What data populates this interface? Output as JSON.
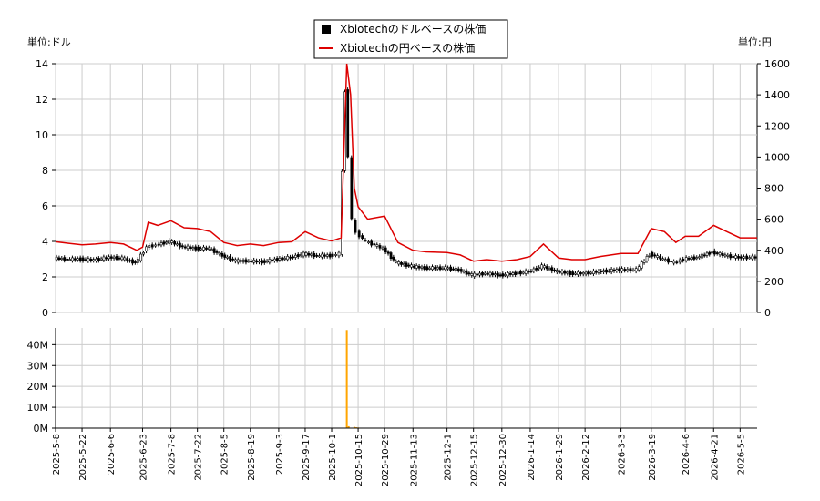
{
  "chart_data": [
    {
      "type": "line",
      "title": "",
      "unit_left": "単位:ドル",
      "unit_right": "単位:円",
      "legend": {
        "placement": "top-center",
        "entries": [
          {
            "label": "Xbiotechのドルベースの株価",
            "color": "#000000",
            "marker": "box"
          },
          {
            "label": "Xbiotechの円ベースの株価",
            "color": "#dd0000",
            "marker": "line"
          }
        ]
      },
      "x_range": [
        "2025-05-08",
        "2026-05-14"
      ],
      "xticks": [
        "2025-5-8",
        "2025-5-22",
        "2025-6-6",
        "2025-6-23",
        "2025-7-8",
        "2025-7-22",
        "2025-8-5",
        "2025-8-19",
        "2025-9-3",
        "2025-9-17",
        "2025-10-1",
        "2025-10-15",
        "2025-10-29",
        "2025-11-13",
        "2025-12-1",
        "2025-12-15",
        "2025-12-30",
        "2026-1-14",
        "2026-1-29",
        "2026-2-12",
        "2026-3-3",
        "2026-3-19",
        "2026-4-6",
        "2026-4-21",
        "2026-5-5"
      ],
      "ylim_left": [
        0,
        14
      ],
      "yticks_left": [
        0,
        2,
        4,
        6,
        8,
        10,
        12,
        14
      ],
      "ylim_right": [
        0,
        1600
      ],
      "yticks_right": [
        0,
        200,
        400,
        600,
        800,
        1000,
        1200,
        1400,
        1600
      ],
      "grid": true,
      "series": [
        {
          "name": "Xbiotechのドルベースの株価",
          "axis": "left",
          "style": "candlestick",
          "color": "#000000",
          "points": [
            [
              "2025-05-08",
              3.05
            ],
            [
              "2025-05-15",
              3.0
            ],
            [
              "2025-05-22",
              3.0
            ],
            [
              "2025-05-29",
              2.95
            ],
            [
              "2025-06-06",
              3.1
            ],
            [
              "2025-06-13",
              3.05
            ],
            [
              "2025-06-20",
              2.8
            ],
            [
              "2025-06-23",
              3.2
            ],
            [
              "2025-06-26",
              3.7
            ],
            [
              "2025-07-01",
              3.8
            ],
            [
              "2025-07-08",
              4.0
            ],
            [
              "2025-07-15",
              3.7
            ],
            [
              "2025-07-22",
              3.6
            ],
            [
              "2025-07-29",
              3.6
            ],
            [
              "2025-08-05",
              3.2
            ],
            [
              "2025-08-12",
              2.9
            ],
            [
              "2025-08-19",
              2.9
            ],
            [
              "2025-08-26",
              2.85
            ],
            [
              "2025-09-03",
              3.0
            ],
            [
              "2025-09-10",
              3.1
            ],
            [
              "2025-09-17",
              3.3
            ],
            [
              "2025-09-24",
              3.2
            ],
            [
              "2025-10-01",
              3.2
            ],
            [
              "2025-10-06",
              3.3
            ],
            [
              "2025-10-09",
              12.5
            ],
            [
              "2025-10-11",
              8.8
            ],
            [
              "2025-10-13",
              5.2
            ],
            [
              "2025-10-15",
              4.5
            ],
            [
              "2025-10-20",
              4.0
            ],
            [
              "2025-10-29",
              3.6
            ],
            [
              "2025-11-05",
              2.8
            ],
            [
              "2025-11-13",
              2.6
            ],
            [
              "2025-11-20",
              2.5
            ],
            [
              "2025-12-01",
              2.5
            ],
            [
              "2025-12-08",
              2.4
            ],
            [
              "2025-12-15",
              2.1
            ],
            [
              "2025-12-22",
              2.2
            ],
            [
              "2025-12-30",
              2.1
            ],
            [
              "2026-01-07",
              2.2
            ],
            [
              "2026-01-14",
              2.3
            ],
            [
              "2026-01-21",
              2.6
            ],
            [
              "2026-01-29",
              2.3
            ],
            [
              "2026-02-05",
              2.2
            ],
            [
              "2026-02-12",
              2.2
            ],
            [
              "2026-02-20",
              2.3
            ],
            [
              "2026-03-03",
              2.4
            ],
            [
              "2026-03-12",
              2.4
            ],
            [
              "2026-03-19",
              3.3
            ],
            [
              "2026-03-26",
              3.0
            ],
            [
              "2026-04-01",
              2.8
            ],
            [
              "2026-04-06",
              3.0
            ],
            [
              "2026-04-13",
              3.1
            ],
            [
              "2026-04-21",
              3.4
            ],
            [
              "2026-04-28",
              3.2
            ],
            [
              "2026-05-05",
              3.1
            ],
            [
              "2026-05-14",
              3.1
            ]
          ]
        },
        {
          "name": "Xbiotechの円ベースの株価",
          "axis": "right",
          "style": "line",
          "color": "#dd0000",
          "points": [
            [
              "2025-05-08",
              455
            ],
            [
              "2025-05-15",
              445
            ],
            [
              "2025-05-22",
              435
            ],
            [
              "2025-05-29",
              440
            ],
            [
              "2025-06-06",
              450
            ],
            [
              "2025-06-13",
              440
            ],
            [
              "2025-06-20",
              400
            ],
            [
              "2025-06-23",
              420
            ],
            [
              "2025-06-26",
              580
            ],
            [
              "2025-07-01",
              560
            ],
            [
              "2025-07-08",
              590
            ],
            [
              "2025-07-15",
              545
            ],
            [
              "2025-07-22",
              540
            ],
            [
              "2025-07-29",
              520
            ],
            [
              "2025-08-05",
              450
            ],
            [
              "2025-08-12",
              430
            ],
            [
              "2025-08-19",
              440
            ],
            [
              "2025-08-26",
              430
            ],
            [
              "2025-09-03",
              450
            ],
            [
              "2025-09-10",
              455
            ],
            [
              "2025-09-17",
              520
            ],
            [
              "2025-09-24",
              480
            ],
            [
              "2025-10-01",
              460
            ],
            [
              "2025-10-06",
              480
            ],
            [
              "2025-10-09",
              1600
            ],
            [
              "2025-10-11",
              1400
            ],
            [
              "2025-10-13",
              800
            ],
            [
              "2025-10-15",
              680
            ],
            [
              "2025-10-20",
              600
            ],
            [
              "2025-10-29",
              620
            ],
            [
              "2025-11-05",
              450
            ],
            [
              "2025-11-13",
              400
            ],
            [
              "2025-11-20",
              390
            ],
            [
              "2025-12-01",
              385
            ],
            [
              "2025-12-08",
              370
            ],
            [
              "2025-12-15",
              330
            ],
            [
              "2025-12-22",
              340
            ],
            [
              "2025-12-30",
              330
            ],
            [
              "2026-01-07",
              340
            ],
            [
              "2026-01-14",
              360
            ],
            [
              "2026-01-21",
              440
            ],
            [
              "2026-01-29",
              350
            ],
            [
              "2026-02-05",
              340
            ],
            [
              "2026-02-12",
              340
            ],
            [
              "2026-02-20",
              360
            ],
            [
              "2026-03-03",
              380
            ],
            [
              "2026-03-12",
              380
            ],
            [
              "2026-03-19",
              540
            ],
            [
              "2026-03-26",
              520
            ],
            [
              "2026-04-01",
              450
            ],
            [
              "2026-04-06",
              490
            ],
            [
              "2026-04-13",
              490
            ],
            [
              "2026-04-21",
              560
            ],
            [
              "2026-04-28",
              520
            ],
            [
              "2026-05-05",
              480
            ],
            [
              "2026-05-14",
              480
            ]
          ]
        }
      ]
    },
    {
      "type": "bar",
      "title": "",
      "x_range": [
        "2025-05-08",
        "2026-05-14"
      ],
      "ylim": [
        0,
        48000000
      ],
      "yticks": [
        "0M",
        "10M",
        "20M",
        "30M",
        "40M"
      ],
      "grid": true,
      "series": [
        {
          "color": "#ffa500",
          "points": [
            [
              "2025-10-08",
              200000
            ],
            [
              "2025-10-09",
              47000000
            ],
            [
              "2025-10-10",
              900000
            ],
            [
              "2025-10-13",
              600000
            ],
            [
              "2025-10-14",
              400000
            ],
            [
              "2025-10-15",
              300000
            ]
          ]
        }
      ]
    }
  ]
}
